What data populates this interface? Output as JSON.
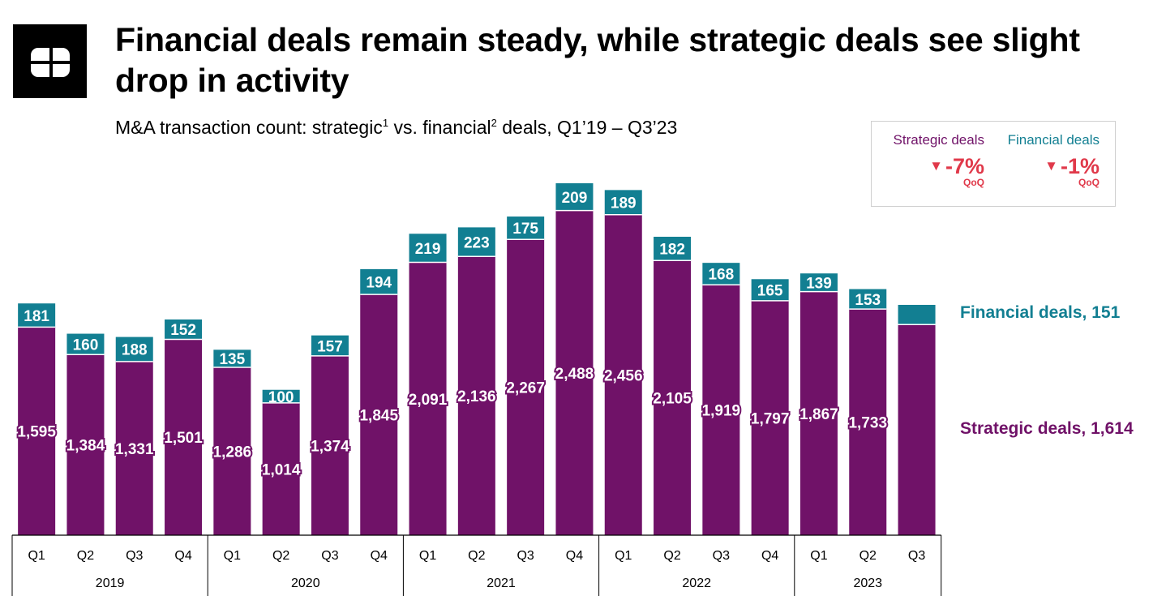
{
  "header": {
    "title": "Financial deals remain steady, while strategic deals see slight drop in activity",
    "subtitle_prefix": "M&A transaction count: strategic",
    "subtitle_sup1": "1",
    "subtitle_mid": " vs. financial",
    "subtitle_sup2": "2",
    "subtitle_suffix": " deals, Q1’19 – Q3’23"
  },
  "qoq_box": {
    "strategic": {
      "name": "Strategic deals",
      "value": "-7%",
      "label": "QoQ"
    },
    "financial": {
      "name": "Financial deals",
      "value": "-1%",
      "label": "QoQ"
    },
    "arrow_glyph": "▼"
  },
  "side_labels": {
    "financial": "Financial deals, 151",
    "strategic": "Strategic deals, 1,614"
  },
  "colors": {
    "strategic": "#701268",
    "financial": "#127f92",
    "decrease": "#e0394a"
  },
  "chart_data": {
    "type": "bar",
    "stacked": true,
    "categories": [
      "Q1",
      "Q2",
      "Q3",
      "Q4",
      "Q1",
      "Q2",
      "Q3",
      "Q4",
      "Q1",
      "Q2",
      "Q3",
      "Q4",
      "Q1",
      "Q2",
      "Q3",
      "Q4",
      "Q1",
      "Q2",
      "Q3"
    ],
    "groups": [
      {
        "label": "2019",
        "count": 4
      },
      {
        "label": "2020",
        "count": 4
      },
      {
        "label": "2021",
        "count": 4
      },
      {
        "label": "2022",
        "count": 4
      },
      {
        "label": "2023",
        "count": 3
      }
    ],
    "series": [
      {
        "name": "Strategic deals",
        "values": [
          1595,
          1384,
          1331,
          1501,
          1286,
          1014,
          1374,
          1845,
          2091,
          2136,
          2267,
          2488,
          2456,
          2105,
          1919,
          1797,
          1867,
          1733,
          1614
        ],
        "labels": [
          "1,595",
          "1,384",
          "1,331",
          "1,501",
          "1,286",
          "1,014",
          "1,374",
          "1,845",
          "2,091",
          "2,136",
          "2,267",
          "2,488",
          "2,456",
          "2,105",
          "1,919",
          "1,797",
          "1,867",
          "1,733",
          ""
        ]
      },
      {
        "name": "Financial deals",
        "values": [
          181,
          160,
          188,
          152,
          135,
          100,
          157,
          194,
          219,
          223,
          175,
          209,
          189,
          182,
          168,
          165,
          139,
          153,
          151
        ],
        "labels": [
          "181",
          "160",
          "188",
          "152",
          "135",
          "100",
          "157",
          "194",
          "219",
          "223",
          "175",
          "209",
          "189",
          "182",
          "168",
          "165",
          "139",
          "153",
          ""
        ]
      }
    ],
    "ylim": [
      0,
      2697
    ],
    "grid": false
  }
}
